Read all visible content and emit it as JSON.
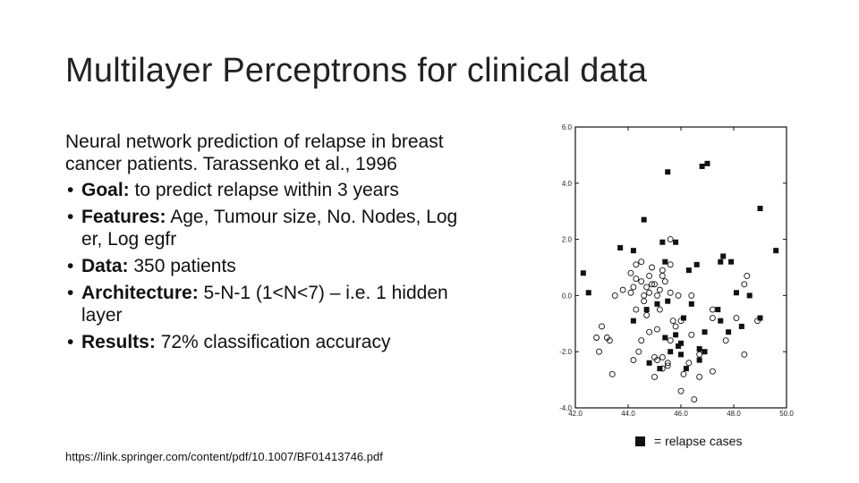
{
  "slide": {
    "title": "Multilayer Perceptrons for clinical data",
    "intro": "Neural network prediction of relapse in breast cancer patients. Tarassenko et al., 1996",
    "bullets": [
      {
        "label": "Goal:",
        "text": " to predict relapse within 3 years"
      },
      {
        "label": "Features:",
        "text": " Age, Tumour size, No. Nodes, Log er, Log egfr"
      },
      {
        "label": "Data:",
        "text": " 350 patients"
      },
      {
        "label": "Architecture:",
        "text": " 5-N-1 (1<N<7) – i.e. 1 hidden layer"
      },
      {
        "label": "Results:",
        "text": " 72% classification accuracy"
      }
    ],
    "reference": "https://link.springer.com/content/pdf/10.1007/BF01413746.pdf",
    "legend_text": "= relapse cases"
  },
  "chart_data": {
    "type": "scatter",
    "xlim": [
      42.0,
      50.0
    ],
    "ylim": [
      -4.0,
      6.0
    ],
    "xticks": [
      "42.0",
      "44.0",
      "46.0",
      "48.0",
      "50.0"
    ],
    "yticks": [
      "-4.0",
      "-2.0",
      "0.0",
      "2.0",
      "4.0",
      "6.0"
    ],
    "series": [
      {
        "marker": "filled-square",
        "color": "#111111",
        "x": [
          45.5,
          47.0,
          46.8,
          49.0,
          49.6,
          44.6,
          45.3,
          45.8,
          45.4,
          47.6,
          47.5,
          42.3,
          42.5,
          43.7,
          44.2,
          46.3,
          46.6,
          47.9,
          48.1,
          48.6,
          49.0,
          45.1,
          45.5,
          46.1,
          46.4,
          47.4,
          47.5,
          44.7,
          44.2,
          45.8,
          45.9,
          46.9,
          47.8,
          48.3,
          45.6,
          46.0,
          45.4,
          46.7,
          46.9,
          44.8,
          46.0,
          45.2,
          46.2,
          46.7
        ],
        "y": [
          4.4,
          4.7,
          4.6,
          3.1,
          1.6,
          2.7,
          1.9,
          1.9,
          1.2,
          1.4,
          1.2,
          0.8,
          0.1,
          1.7,
          1.6,
          0.9,
          1.1,
          1.2,
          0.1,
          0.0,
          -0.8,
          -0.3,
          -0.2,
          -0.8,
          -0.3,
          -0.5,
          -0.9,
          -0.5,
          -0.9,
          -1.4,
          -1.8,
          -1.3,
          -1.3,
          -1.1,
          -2.0,
          -1.7,
          -1.5,
          -1.9,
          -2.0,
          -2.4,
          -2.1,
          -2.6,
          -2.6,
          -2.3
        ]
      },
      {
        "marker": "open-circle",
        "color": "#111111",
        "x": [
          45.6,
          44.3,
          44.5,
          44.9,
          45.3,
          45.6,
          44.1,
          44.3,
          44.5,
          44.2,
          44.8,
          45.0,
          45.3,
          45.4,
          44.8,
          45.1,
          43.5,
          43.8,
          44.1,
          44.6,
          44.6,
          44.7,
          44.9,
          45.2,
          45.6,
          45.9,
          46.4,
          48.5,
          48.4,
          43.0,
          43.2,
          44.3,
          44.7,
          45.2,
          45.7,
          46.0,
          48.9,
          48.1,
          43.3,
          44.5,
          44.8,
          45.1,
          45.6,
          45.8,
          46.4,
          47.7,
          42.8,
          42.9,
          44.2,
          45.0,
          45.3,
          45.5,
          46.3,
          46.7,
          47.2,
          48.4,
          43.4,
          45.3,
          45.5,
          46.1,
          46.7,
          44.4,
          45.1,
          47.2,
          47.2,
          45.0,
          46.0,
          46.5
        ],
        "y": [
          2.0,
          1.1,
          1.2,
          1.0,
          0.9,
          1.1,
          0.8,
          0.6,
          0.5,
          0.3,
          0.7,
          0.4,
          0.7,
          0.5,
          0.1,
          0.0,
          0.0,
          0.2,
          0.1,
          -0.2,
          0.0,
          0.3,
          0.4,
          0.2,
          0.1,
          0.0,
          0.0,
          0.7,
          0.4,
          -1.1,
          -1.5,
          -0.5,
          -0.7,
          -0.5,
          -0.9,
          -0.9,
          -0.9,
          -0.8,
          -1.6,
          -1.6,
          -1.3,
          -1.2,
          -1.6,
          -1.1,
          -1.4,
          -1.6,
          -1.5,
          -2.0,
          -2.3,
          -2.2,
          -2.6,
          -2.4,
          -2.4,
          -2.1,
          -2.7,
          -2.1,
          -2.8,
          -2.2,
          -2.5,
          -2.8,
          -2.9,
          -2.0,
          -2.3,
          -0.5,
          -0.8,
          -2.9,
          -3.4,
          -3.7
        ]
      }
    ]
  }
}
